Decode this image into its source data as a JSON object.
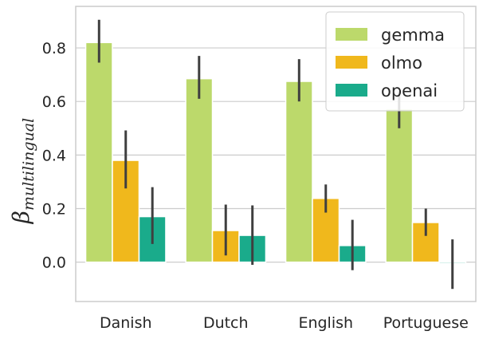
{
  "chart_data": {
    "type": "bar",
    "categories": [
      "Danish",
      "Dutch",
      "English",
      "Portuguese"
    ],
    "series": [
      {
        "name": "gemma",
        "color": "#bcd96b",
        "values": [
          0.82,
          0.685,
          0.675,
          0.572
        ],
        "err_low": [
          0.745,
          0.61,
          0.6,
          0.5
        ],
        "err_high": [
          0.905,
          0.77,
          0.758,
          0.638
        ]
      },
      {
        "name": "olmo",
        "color": "#f0b81c",
        "values": [
          0.38,
          0.118,
          0.238,
          0.148
        ],
        "err_low": [
          0.275,
          0.025,
          0.185,
          0.098
        ],
        "err_high": [
          0.492,
          0.215,
          0.29,
          0.2
        ]
      },
      {
        "name": "openai",
        "color": "#1aab8b",
        "values": [
          0.17,
          0.1,
          0.062,
          -0.005
        ],
        "err_low": [
          0.068,
          -0.01,
          -0.03,
          -0.1
        ],
        "err_high": [
          0.28,
          0.212,
          0.158,
          0.085
        ]
      }
    ],
    "ylabel_symbol": "β",
    "ylabel_subscript": "multilingual",
    "yticks": [
      "0.0",
      "0.2",
      "0.4",
      "0.6",
      "0.8"
    ],
    "ytick_values": [
      0.0,
      0.2,
      0.4,
      0.6,
      0.8
    ],
    "ylim": [
      -0.147,
      0.955
    ],
    "grid": "horizontal",
    "legend_position": "upper-right",
    "error_bars": true
  }
}
